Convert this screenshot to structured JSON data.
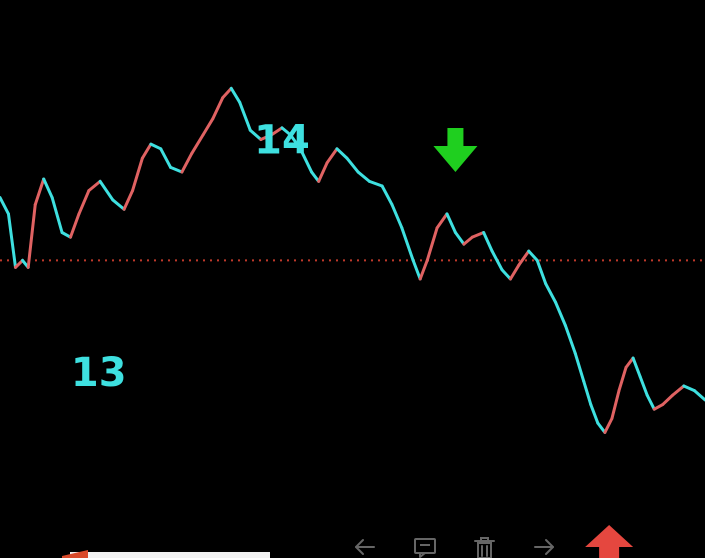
{
  "chart_data": {
    "type": "line",
    "title": "",
    "xlabel": "",
    "ylabel": "",
    "ylim": [
      12.2,
      14.6
    ],
    "xlim": [
      0,
      100
    ],
    "labels": [
      {
        "text": "14",
        "value": 14,
        "color": "#3ee0e0"
      },
      {
        "text": "13",
        "value": 13,
        "color": "#3ee0e0"
      }
    ],
    "reference_line": {
      "value": 13.48,
      "style": "dotted",
      "color": "#c0392b"
    },
    "points": [
      [
        0.0,
        13.75
      ],
      [
        1.2,
        13.68
      ],
      [
        2.2,
        13.45
      ],
      [
        3.2,
        13.48
      ],
      [
        4.0,
        13.45
      ],
      [
        5.0,
        13.72
      ],
      [
        6.2,
        13.83
      ],
      [
        7.4,
        13.75
      ],
      [
        8.8,
        13.6
      ],
      [
        10.0,
        13.58
      ],
      [
        11.2,
        13.68
      ],
      [
        12.6,
        13.78
      ],
      [
        14.2,
        13.82
      ],
      [
        16.0,
        13.74
      ],
      [
        17.6,
        13.7
      ],
      [
        18.8,
        13.78
      ],
      [
        20.2,
        13.92
      ],
      [
        21.4,
        13.98
      ],
      [
        22.8,
        13.96
      ],
      [
        24.2,
        13.88
      ],
      [
        25.8,
        13.86
      ],
      [
        27.2,
        13.94
      ],
      [
        28.8,
        14.02
      ],
      [
        30.2,
        14.09
      ],
      [
        31.6,
        14.18
      ],
      [
        32.8,
        14.22
      ],
      [
        34.0,
        14.16
      ],
      [
        35.5,
        14.04
      ],
      [
        37.0,
        14.0
      ],
      [
        38.5,
        14.02
      ],
      [
        40.0,
        14.05
      ],
      [
        41.2,
        14.02
      ],
      [
        42.6,
        13.96
      ],
      [
        44.2,
        13.86
      ],
      [
        45.2,
        13.82
      ],
      [
        46.4,
        13.9
      ],
      [
        47.8,
        13.96
      ],
      [
        49.2,
        13.92
      ],
      [
        50.8,
        13.86
      ],
      [
        52.4,
        13.82
      ],
      [
        54.2,
        13.8
      ],
      [
        55.6,
        13.72
      ],
      [
        57.0,
        13.62
      ],
      [
        58.6,
        13.48
      ],
      [
        59.6,
        13.4
      ],
      [
        60.6,
        13.48
      ],
      [
        62.0,
        13.62
      ],
      [
        63.4,
        13.68
      ],
      [
        64.6,
        13.6
      ],
      [
        65.8,
        13.55
      ],
      [
        67.0,
        13.58
      ],
      [
        68.6,
        13.6
      ],
      [
        69.8,
        13.52
      ],
      [
        71.2,
        13.44
      ],
      [
        72.4,
        13.4
      ],
      [
        73.6,
        13.46
      ],
      [
        75.0,
        13.52
      ],
      [
        76.2,
        13.48
      ],
      [
        77.4,
        13.38
      ],
      [
        78.8,
        13.3
      ],
      [
        80.2,
        13.2
      ],
      [
        81.6,
        13.08
      ],
      [
        82.8,
        12.96
      ],
      [
        83.8,
        12.86
      ],
      [
        84.8,
        12.78
      ],
      [
        85.8,
        12.74
      ],
      [
        86.8,
        12.8
      ],
      [
        87.8,
        12.92
      ],
      [
        88.8,
        13.02
      ],
      [
        89.8,
        13.06
      ],
      [
        90.8,
        12.98
      ],
      [
        91.8,
        12.9
      ],
      [
        92.8,
        12.84
      ],
      [
        94.0,
        12.86
      ],
      [
        95.4,
        12.9
      ],
      [
        97.0,
        12.94
      ],
      [
        98.5,
        12.92
      ],
      [
        100.0,
        12.88
      ]
    ],
    "up_color": "#e06262",
    "down_color": "#3ee0e0",
    "markers": [
      {
        "type": "sell-arrow",
        "direction": "down",
        "x": 64.6,
        "color": "#1fcf1f"
      },
      {
        "type": "buy-arrow",
        "direction": "up",
        "x": 86.4,
        "color": "#e5473f"
      }
    ],
    "grid": false,
    "legend": "none"
  },
  "toolbar": {
    "prev_icon": "arrow-left-icon",
    "comment_icon": "comment-icon",
    "delete_icon": "trash-icon",
    "next_icon": "arrow-right-icon",
    "icon_color": "#666666"
  }
}
